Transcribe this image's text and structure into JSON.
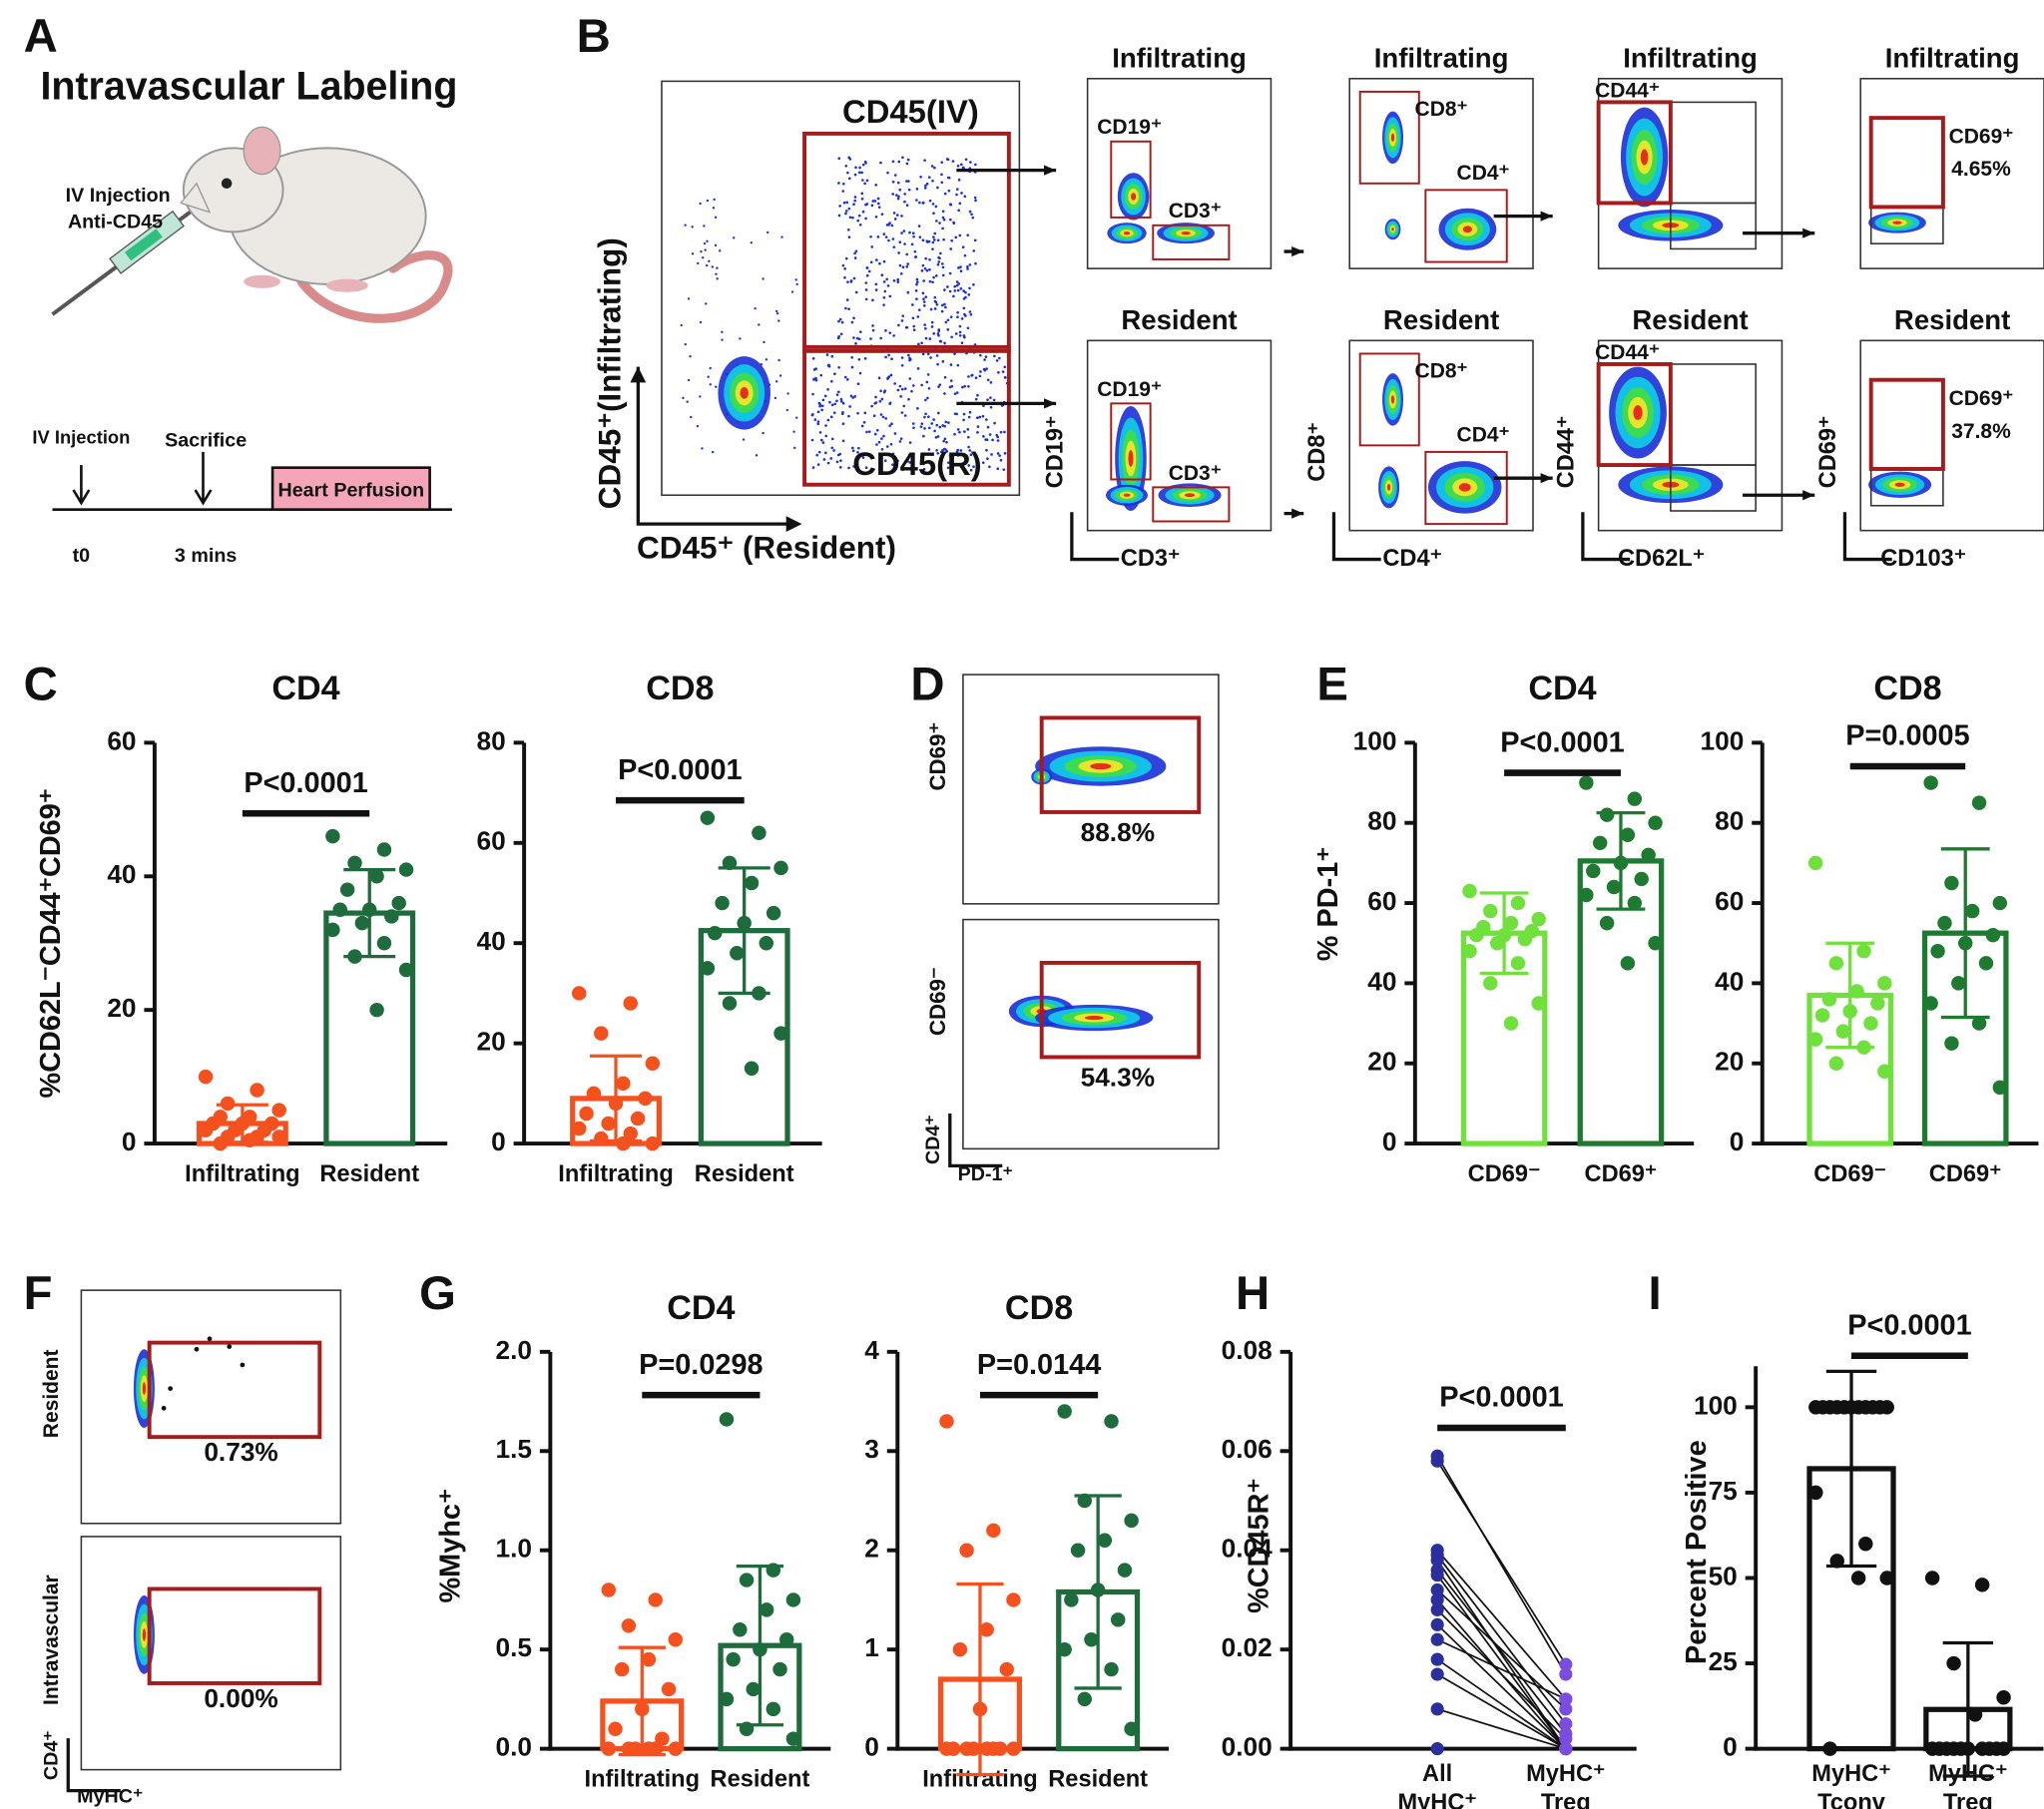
{
  "panel_labels": [
    "A",
    "B",
    "C",
    "D",
    "E",
    "F",
    "G",
    "H",
    "I"
  ],
  "panel_a": {
    "title": "Intravascular Labeling",
    "injection": "IV Injection",
    "antibody": "Anti-CD45",
    "events": [
      "IV Injection",
      "Sacrifice"
    ],
    "times": [
      "t0",
      "3 mins"
    ],
    "step": "Heart Perfusion"
  },
  "panel_b": {
    "y_axis": "CD45⁺(Infiltrating)",
    "x_axis": "CD45⁺ (Resident)",
    "gates": [
      "CD45(IV)",
      "CD45(R)"
    ],
    "rows": [
      {
        "title": "Infiltrating",
        "gates": [
          [
            "CD19⁺",
            "CD3⁺"
          ],
          [
            "CD8⁺",
            "CD4⁺"
          ],
          [
            "CD44⁺"
          ],
          [
            "CD69⁺",
            "4.65%"
          ]
        ]
      },
      {
        "title": "Resident",
        "gates": [
          [
            "CD19⁺",
            "CD3⁺"
          ],
          [
            "CD8⁺",
            "CD4⁺"
          ],
          [
            "CD44⁺"
          ],
          [
            "CD69⁺",
            "37.8%"
          ]
        ]
      }
    ],
    "axes": [
      [
        "CD3⁺",
        "CD19⁺"
      ],
      [
        "CD4⁺",
        "CD8⁺"
      ],
      [
        "CD62L⁺",
        "CD44⁺"
      ],
      [
        "CD103⁺",
        "CD69⁺"
      ]
    ]
  },
  "panel_d": {
    "y_labels": [
      "CD69⁺",
      "CD69⁻"
    ],
    "percents": [
      "88.8%",
      "54.3%"
    ],
    "x_axis": "PD-1⁺",
    "corner": "CD4⁺"
  },
  "panel_f": {
    "y_labels": [
      "Resident",
      "Intravascular"
    ],
    "percents": [
      "0.73%",
      "0.00%"
    ],
    "x_axis": "MyHC⁺",
    "corner": "CD4⁺"
  },
  "chart_data": [
    {
      "type": "bar",
      "title": "CD4",
      "y_label": "%CD62L⁻CD44⁺CD69⁺",
      "p_value": "P<0.0001",
      "categories": [
        "Infiltrating",
        "Resident"
      ],
      "colors": [
        "#f4511e",
        "#1e6b3c"
      ],
      "values": [
        3,
        34.5
      ],
      "errors": [
        2.8,
        6.5
      ],
      "points": [
        [
          10,
          8,
          6,
          5,
          4,
          4,
          3,
          3,
          3,
          2,
          2,
          2,
          1,
          1,
          1,
          0.5,
          0
        ],
        [
          46,
          44,
          42,
          41,
          40,
          38,
          36,
          35,
          35,
          34,
          33,
          32,
          30,
          28,
          26,
          20
        ]
      ],
      "ylim": [
        0,
        60
      ],
      "yticks": [
        0,
        20,
        40,
        60
      ]
    },
    {
      "type": "bar",
      "title": "CD8",
      "p_value": "P<0.0001",
      "categories": [
        "Infiltrating",
        "Resident"
      ],
      "colors": [
        "#f4511e",
        "#1e6b3c"
      ],
      "values": [
        9,
        42.5
      ],
      "errors": [
        8.5,
        12.5
      ],
      "points": [
        [
          30,
          28,
          22,
          16,
          12,
          10,
          9,
          8,
          6,
          5,
          4,
          3,
          2,
          1,
          0,
          0
        ],
        [
          65,
          62,
          56,
          55,
          52,
          48,
          46,
          44,
          42,
          40,
          38,
          35,
          30,
          28,
          22,
          15
        ]
      ],
      "ylim": [
        0,
        80
      ],
      "yticks": [
        0,
        20,
        40,
        60,
        80
      ]
    },
    {
      "type": "bar",
      "title": "CD4",
      "y_label": "% PD-1⁺",
      "p_value": "P<0.0001",
      "categories": [
        "CD69⁻",
        "CD69⁺"
      ],
      "colors": [
        "#6fe03c",
        "#1e7a30"
      ],
      "values": [
        52.5,
        70.5
      ],
      "errors": [
        10,
        12
      ],
      "points": [
        [
          63,
          60,
          58,
          56,
          55,
          54,
          53,
          52,
          52,
          51,
          50,
          48,
          45,
          40,
          35,
          30
        ],
        [
          90,
          86,
          82,
          80,
          77,
          75,
          72,
          70,
          68,
          66,
          64,
          62,
          60,
          55,
          50,
          45
        ]
      ],
      "ylim": [
        0,
        100
      ],
      "yticks": [
        0,
        20,
        40,
        60,
        80,
        100
      ]
    },
    {
      "type": "bar",
      "title": "CD8",
      "p_value": "P=0.0005",
      "categories": [
        "CD69⁻",
        "CD69⁺"
      ],
      "colors": [
        "#6fe03c",
        "#1e7a30"
      ],
      "values": [
        37,
        52.5
      ],
      "errors": [
        13,
        21
      ],
      "points": [
        [
          70,
          48,
          45,
          40,
          38,
          36,
          35,
          33,
          32,
          30,
          28,
          26,
          24,
          20,
          18
        ],
        [
          90,
          85,
          65,
          60,
          58,
          55,
          52,
          50,
          48,
          45,
          40,
          35,
          30,
          25,
          14
        ]
      ],
      "ylim": [
        0,
        100
      ],
      "yticks": [
        0,
        20,
        40,
        60,
        80,
        100
      ]
    },
    {
      "type": "bar",
      "title": "CD4",
      "y_label": "%Myhc⁺",
      "p_value": "P=0.0298",
      "categories": [
        "Infiltrating",
        "Resident"
      ],
      "colors": [
        "#f4511e",
        "#1e6b3c"
      ],
      "values": [
        0.24,
        0.52
      ],
      "errors": [
        0.27,
        0.4
      ],
      "points": [
        [
          0.8,
          0.75,
          0.62,
          0.55,
          0.45,
          0.4,
          0.3,
          0.2,
          0.1,
          0.05,
          0,
          0,
          0,
          0,
          0,
          0
        ],
        [
          1.66,
          0.9,
          0.85,
          0.75,
          0.7,
          0.6,
          0.55,
          0.5,
          0.45,
          0.4,
          0.3,
          0.25,
          0.2,
          0.1,
          0.05
        ]
      ],
      "ylim": [
        0,
        2
      ],
      "yticks": [
        {
          "value": 0,
          "label": "0.0"
        },
        0.5,
        {
          "value": 1,
          "label": "1.0"
        },
        1.5,
        {
          "value": 2,
          "label": "2.0"
        }
      ]
    },
    {
      "type": "bar",
      "title": "CD8",
      "p_value": "P=0.0144",
      "categories": [
        "Infiltrating",
        "Resident"
      ],
      "colors": [
        "#f4511e",
        "#1e6b3c"
      ],
      "values": [
        0.7,
        1.58
      ],
      "errors": [
        0.96,
        0.97
      ],
      "points": [
        [
          3.3,
          2.2,
          2.0,
          1.5,
          1.2,
          1.0,
          0.8,
          0.4,
          0,
          0,
          0,
          0,
          0,
          0,
          0,
          0
        ],
        [
          3.4,
          3.3,
          2.5,
          2.3,
          2.1,
          2.0,
          1.8,
          1.6,
          1.5,
          1.3,
          1.1,
          1.0,
          0.8,
          0.5,
          0.2
        ]
      ],
      "ylim": [
        0,
        4
      ],
      "yticks": [
        0,
        1,
        2,
        3,
        4
      ]
    },
    {
      "type": "paired",
      "y_label": "%CD45R⁺",
      "p_value": "P<0.0001",
      "categories": [
        [
          "All",
          "MyHC⁺"
        ],
        [
          "MyHC⁺",
          "Treg"
        ]
      ],
      "colors": [
        "#2a2f9e",
        "#7a4de0"
      ],
      "pairs": [
        [
          0.059,
          0.015
        ],
        [
          0.058,
          0.017
        ],
        [
          0.04,
          0.01
        ],
        [
          0.039,
          0.005
        ],
        [
          0.038,
          0
        ],
        [
          0.036,
          0.003
        ],
        [
          0.035,
          0
        ],
        [
          0.032,
          0.008
        ],
        [
          0.03,
          0
        ],
        [
          0.028,
          0.002
        ],
        [
          0.025,
          0
        ],
        [
          0.022,
          0.01
        ],
        [
          0.018,
          0
        ],
        [
          0.015,
          0
        ],
        [
          0.008,
          0
        ],
        [
          0,
          0
        ]
      ],
      "ylim": [
        0,
        0.08
      ],
      "yticks": [
        {
          "value": 0,
          "label": "0.00"
        },
        {
          "value": 0.02,
          "label": "0.02"
        },
        {
          "value": 0.04,
          "label": "0.04"
        },
        {
          "value": 0.06,
          "label": "0.06"
        },
        {
          "value": 0.08,
          "label": "0.08"
        }
      ]
    },
    {
      "type": "bar",
      "y_label": "Percent Positive",
      "p_value": "P<0.0001",
      "categories": [
        [
          "MyHC⁺",
          "Tconv"
        ],
        [
          "MyHC⁺",
          "Treg"
        ]
      ],
      "colors": [
        "#111111",
        "#111111"
      ],
      "values": [
        82,
        11.5
      ],
      "errors": [
        28.5,
        19.5
      ],
      "points": [
        [
          100,
          100,
          100,
          100,
          100,
          100,
          100,
          100,
          100,
          100,
          100,
          75,
          60,
          55,
          50,
          50,
          0
        ],
        [
          50,
          48,
          25,
          15,
          10,
          0,
          0,
          0,
          0,
          0,
          0,
          0,
          0,
          0,
          0
        ]
      ],
      "ylim": [
        0,
        112
      ],
      "yticks": [
        0,
        25,
        50,
        75,
        100
      ]
    }
  ]
}
